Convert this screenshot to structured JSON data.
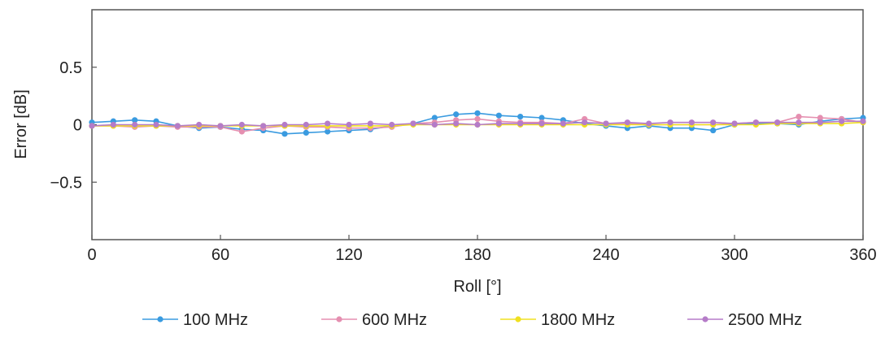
{
  "chart_data": {
    "type": "line",
    "title": "",
    "xlabel": "Roll [°]",
    "ylabel": "Error [dB]",
    "xlim": [
      0,
      360
    ],
    "ylim": [
      -1,
      1
    ],
    "xticks": [
      0,
      60,
      120,
      180,
      240,
      300,
      360
    ],
    "xtick_labels": [
      "0",
      "60",
      "120",
      "180",
      "240",
      "300",
      "360"
    ],
    "yticks": [
      0.5,
      0,
      -0.5
    ],
    "ytick_labels": [
      "0.5",
      "0",
      "−0.5"
    ],
    "grid": false,
    "legend_position": "bottom",
    "x": [
      0,
      10,
      20,
      30,
      40,
      50,
      60,
      70,
      80,
      90,
      100,
      110,
      120,
      130,
      140,
      150,
      160,
      170,
      180,
      190,
      200,
      210,
      220,
      230,
      240,
      250,
      260,
      270,
      280,
      290,
      300,
      310,
      320,
      330,
      340,
      350,
      360
    ],
    "series": [
      {
        "name": "100 MHz",
        "color": "#3a9be0",
        "values": [
          0.02,
          0.03,
          0.04,
          0.03,
          -0.01,
          -0.03,
          -0.02,
          -0.04,
          -0.05,
          -0.08,
          -0.07,
          -0.06,
          -0.05,
          -0.04,
          -0.01,
          0.01,
          0.06,
          0.09,
          0.1,
          0.08,
          0.07,
          0.06,
          0.04,
          0.01,
          -0.01,
          -0.03,
          -0.01,
          -0.03,
          -0.03,
          -0.05,
          0.0,
          0.01,
          0.01,
          0.0,
          0.03,
          0.05,
          0.06
        ]
      },
      {
        "name": "600 MHz",
        "color": "#e58fb0",
        "values": [
          -0.01,
          -0.01,
          -0.02,
          -0.01,
          -0.02,
          -0.02,
          -0.02,
          -0.06,
          -0.03,
          -0.01,
          -0.02,
          -0.02,
          -0.03,
          -0.03,
          -0.02,
          0.01,
          0.02,
          0.04,
          0.05,
          0.03,
          0.02,
          0.02,
          0.01,
          0.05,
          0.01,
          0.01,
          0.0,
          0.0,
          0.0,
          0.0,
          0.01,
          0.02,
          0.02,
          0.07,
          0.06,
          0.05,
          0.02
        ]
      },
      {
        "name": "1800 MHz",
        "color": "#f0e020",
        "values": [
          -0.01,
          -0.01,
          -0.01,
          -0.01,
          -0.01,
          -0.01,
          -0.01,
          -0.01,
          -0.01,
          -0.01,
          -0.01,
          -0.01,
          -0.01,
          -0.01,
          -0.01,
          0.0,
          0.0,
          0.0,
          0.0,
          0.0,
          0.0,
          0.0,
          0.0,
          0.0,
          0.0,
          0.0,
          0.0,
          0.0,
          0.0,
          0.0,
          0.0,
          0.0,
          0.01,
          0.01,
          0.01,
          0.01,
          0.02
        ]
      },
      {
        "name": "2500 MHz",
        "color": "#b57cc8",
        "values": [
          -0.01,
          0.0,
          0.0,
          0.0,
          -0.01,
          0.0,
          -0.01,
          0.0,
          -0.01,
          0.0,
          0.0,
          0.01,
          0.0,
          0.01,
          0.0,
          0.01,
          0.0,
          0.01,
          0.0,
          0.01,
          0.01,
          0.01,
          0.01,
          0.02,
          0.01,
          0.02,
          0.01,
          0.02,
          0.02,
          0.02,
          0.01,
          0.02,
          0.02,
          0.02,
          0.02,
          0.03,
          0.03
        ]
      }
    ]
  }
}
